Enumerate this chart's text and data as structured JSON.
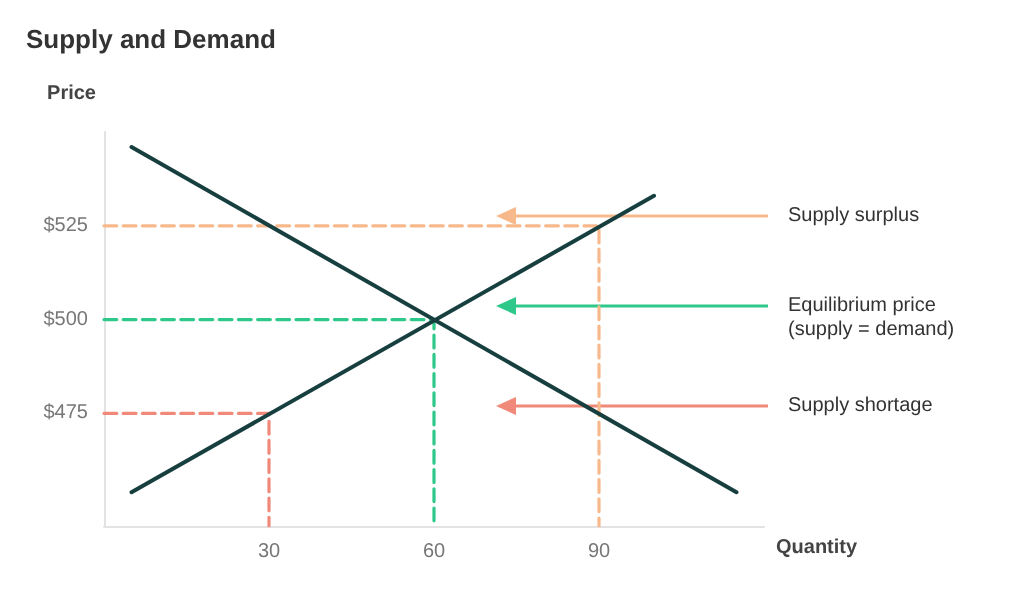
{
  "chart_data": {
    "type": "line",
    "title": "Supply and Demand",
    "xlabel": "Quantity",
    "ylabel": "Price",
    "xlim": [
      0,
      120
    ],
    "ylim": [
      445,
      550
    ],
    "xticks": [
      30,
      60,
      90
    ],
    "yticks": [
      {
        "value": 475,
        "label": "$475"
      },
      {
        "value": 500,
        "label": "$500"
      },
      {
        "value": 525,
        "label": "$525"
      }
    ],
    "series": [
      {
        "color": "#f7b98b",
        "line_style": "dashed",
        "x": [
          0,
          90,
          90
        ],
        "values": [
          525,
          525,
          445
        ]
      },
      {
        "color": "#2ec98a",
        "line_style": "dashed",
        "x": [
          0,
          60,
          60
        ],
        "values": [
          500,
          500,
          445
        ]
      },
      {
        "color": "#f0897a",
        "line_style": "dashed",
        "x": [
          0,
          30,
          30
        ],
        "values": [
          475,
          475,
          445
        ]
      },
      {
        "color": "#173f3f",
        "line_style": "solid",
        "x": [
          5,
          100
        ],
        "values": [
          454,
          533
        ]
      },
      {
        "color": "#173f3f",
        "line_style": "solid",
        "x": [
          5,
          115
        ],
        "values": [
          546,
          454
        ]
      }
    ],
    "annotations": [
      "Supply surplus",
      "Equilibrium price\n(supply = demand)",
      "Supply shortage"
    ],
    "marker": "none",
    "grid": false
  }
}
